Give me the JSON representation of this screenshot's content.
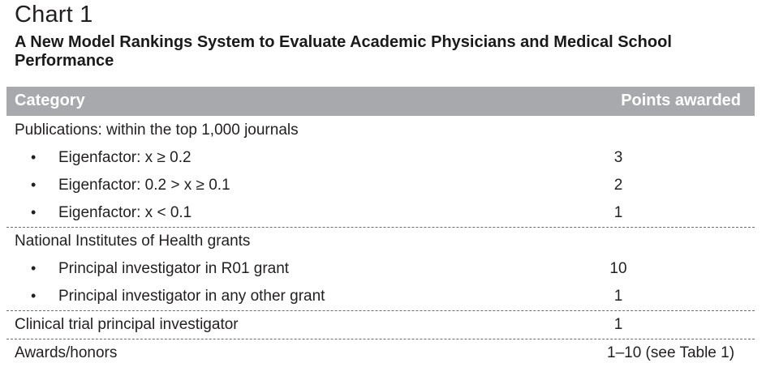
{
  "chart_label": "Chart 1",
  "title": "A New Model Rankings System to Evaluate Academic Physicians and Medical School Performance",
  "header": {
    "category": "Category",
    "points": "Points awarded"
  },
  "groups": [
    {
      "label": "Publications: within the top 1,000 journals",
      "points": "",
      "items": [
        {
          "bullet": "•",
          "label": "Eigenfactor: x ≥ 0.2",
          "points": "3"
        },
        {
          "bullet": "•",
          "label": "Eigenfactor: 0.2 > x ≥ 0.1",
          "points": "2"
        },
        {
          "bullet": "•",
          "label": "Eigenfactor: x < 0.1",
          "points": "1"
        }
      ]
    },
    {
      "label": "National Institutes of Health grants",
      "points": "",
      "items": [
        {
          "bullet": "•",
          "label": "Principal investigator in R01 grant",
          "points": "10"
        },
        {
          "bullet": "•",
          "label": "Principal investigator in any other grant",
          "points": "1"
        }
      ]
    },
    {
      "label": "Clinical trial principal investigator",
      "points": "1",
      "items": []
    },
    {
      "label": "Awards/honors",
      "points": "1–10 (see Table 1)",
      "items": []
    }
  ]
}
